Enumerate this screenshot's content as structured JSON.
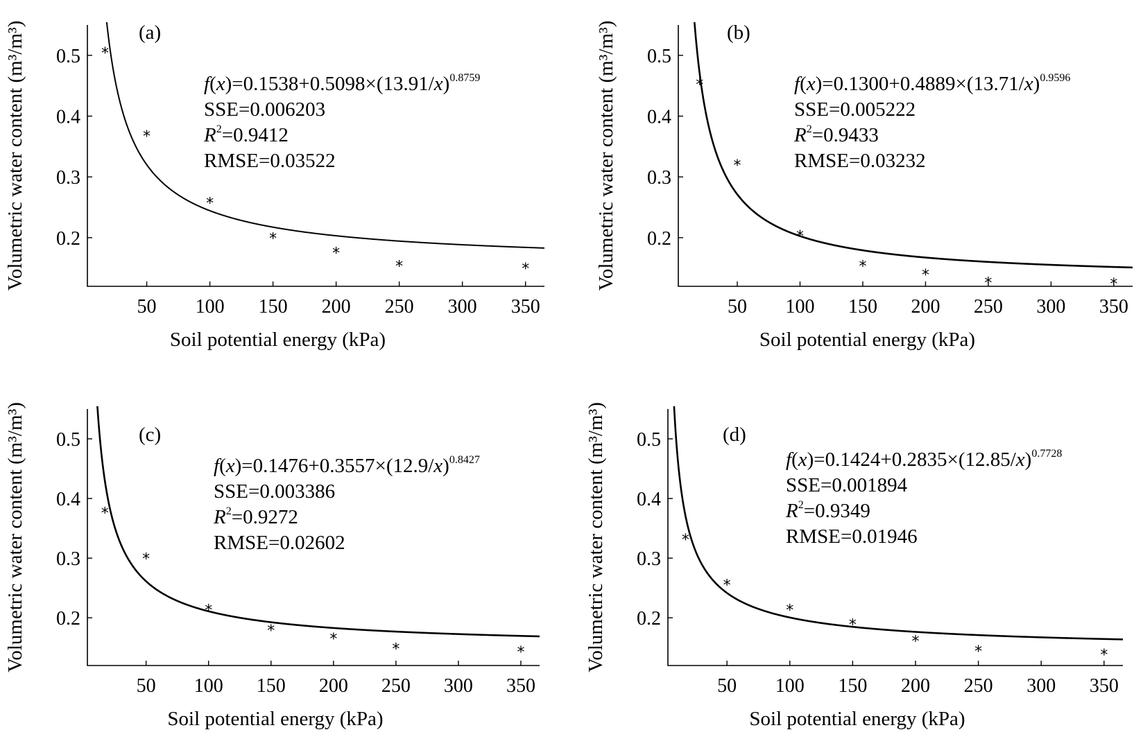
{
  "figure": {
    "y_axis_label": "Volumetric water content (m³/m³)",
    "x_axis_label": "Soil potential energy (kPa)"
  },
  "chart_data": [
    {
      "type": "scatter",
      "panel_label": "(a)",
      "xlabel": "Soil potential energy (kPa)",
      "ylabel": "Volumetric water content (m³/m³)",
      "x_ticks": [
        50,
        100,
        150,
        200,
        250,
        300,
        350
      ],
      "y_ticks": [
        0.2,
        0.3,
        0.4,
        0.5
      ],
      "xlim": [
        3,
        365
      ],
      "ylim": [
        0.12,
        0.55
      ],
      "grid": false,
      "x": [
        17,
        50,
        100,
        150,
        200,
        250,
        350
      ],
      "y": [
        0.509,
        0.372,
        0.262,
        0.204,
        0.18,
        0.158,
        0.154
      ],
      "fit": {
        "a": 0.1538,
        "b": 0.5098,
        "c": 13.91,
        "n": 0.8759
      },
      "annotation": {
        "equation": "0.1538+0.5098×(13.91/x)",
        "exponent": "0.8759",
        "sse": "SSE=0.006203",
        "r2_value": "=0.9412",
        "rmse": "RMSE=0.03522"
      }
    },
    {
      "type": "scatter",
      "panel_label": "(b)",
      "xlabel": "Soil potential energy (kPa)",
      "ylabel": "Volumetric water content (m³/m³)",
      "x_ticks": [
        50,
        100,
        150,
        200,
        250,
        300,
        350
      ],
      "y_ticks": [
        0.2,
        0.3,
        0.4,
        0.5
      ],
      "xlim": [
        3,
        365
      ],
      "ylim": [
        0.12,
        0.55
      ],
      "grid": false,
      "x": [
        20,
        50,
        100,
        150,
        200,
        250,
        350
      ],
      "y": [
        0.457,
        0.324,
        0.208,
        0.158,
        0.144,
        0.131,
        0.129
      ],
      "fit": {
        "a": 0.13,
        "b": 0.4889,
        "c": 13.71,
        "n": 0.9596
      },
      "annotation": {
        "equation": "0.1300+0.4889×(13.71/x)",
        "exponent": "0.9596",
        "sse": "SSE=0.005222",
        "r2_value": "=0.9433",
        "rmse": "RMSE=0.03232"
      }
    },
    {
      "type": "scatter",
      "panel_label": "(c)",
      "xlabel": "Soil potential energy (kPa)",
      "ylabel": "Volumetric water content (m³/m³)",
      "x_ticks": [
        50,
        100,
        150,
        200,
        250,
        300,
        350
      ],
      "y_ticks": [
        0.2,
        0.3,
        0.4,
        0.5
      ],
      "xlim": [
        3,
        365
      ],
      "ylim": [
        0.12,
        0.55
      ],
      "grid": false,
      "x": [
        17,
        50,
        100,
        150,
        200,
        250,
        350
      ],
      "y": [
        0.381,
        0.304,
        0.218,
        0.184,
        0.17,
        0.153,
        0.148
      ],
      "fit": {
        "a": 0.1476,
        "b": 0.3557,
        "c": 12.9,
        "n": 0.8427
      },
      "annotation": {
        "equation": "0.1476+0.3557×(12.9/x)",
        "exponent": "0.8427",
        "sse": "SSE=0.003386",
        "r2_value": "=0.9272",
        "rmse": "RMSE=0.02602"
      }
    },
    {
      "type": "scatter",
      "panel_label": "(d)",
      "xlabel": "Soil potential energy (kPa)",
      "ylabel": "Volumetric water content (m³/m³)",
      "x_ticks": [
        50,
        100,
        150,
        200,
        250,
        300,
        350
      ],
      "y_ticks": [
        0.2,
        0.3,
        0.4,
        0.5
      ],
      "xlim": [
        3,
        365
      ],
      "ylim": [
        0.12,
        0.55
      ],
      "grid": false,
      "x": [
        17,
        50,
        100,
        150,
        200,
        250,
        350
      ],
      "y": [
        0.336,
        0.26,
        0.218,
        0.194,
        0.166,
        0.149,
        0.143
      ],
      "fit": {
        "a": 0.1424,
        "b": 0.2835,
        "c": 12.85,
        "n": 0.7728
      },
      "annotation": {
        "equation": "0.1424+0.2835×(12.85/x)",
        "exponent": "0.7728",
        "sse": "SSE=0.001894",
        "r2_value": "=0.9349",
        "rmse": "RMSE=0.01946"
      }
    }
  ]
}
